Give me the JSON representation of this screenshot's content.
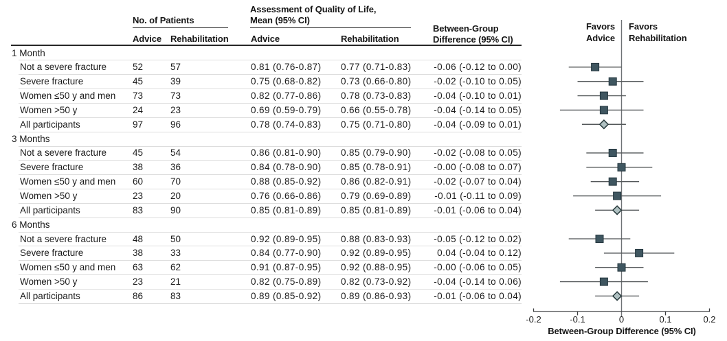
{
  "figure_kind": "forest-plot-with-subgroup-table",
  "table": {
    "column_group_headers": {
      "patients": "No. of Patients",
      "qol_line1": "Assessment of Quality of Life,",
      "qol_line2": "Mean (95% CI)",
      "diff_line1": "Between-Group",
      "diff_line2": "Difference (95% CI)"
    },
    "sub_headers": {
      "patients_advice": "Advice",
      "patients_rehabilitation": "Rehabilitation",
      "qol_advice": "Advice",
      "qol_rehabilitation": "Rehabilitation"
    }
  },
  "plot": {
    "favors_left_line1": "Favors",
    "favors_left_line2": "Advice",
    "favors_right_line1": "Favors",
    "favors_right_line2": "Rehabilitation",
    "xlabel": "Between-Group Difference (95% CI)"
  },
  "colors": {
    "text": "#1b1b1b",
    "heavy_rule": "#262626",
    "row_separator": "#dddddd",
    "zero_line": "#6e7275",
    "ci_line": "#54585a",
    "axis_line": "#3c3e40",
    "square_fill": "#3f5660",
    "square_stroke": "#22343c",
    "diamond_fill": "#b0c1c2",
    "diamond_stroke": "#27393b"
  },
  "chart_data": {
    "type": "forest",
    "xlabel": "Between-Group Difference (95% CI)",
    "xlim": [
      -0.2,
      0.2
    ],
    "xticks": [
      -0.2,
      -0.1,
      0,
      0.1,
      0.2
    ],
    "xtick_labels": [
      "-0.2",
      "-0.1",
      "0",
      "0.1",
      "0.2"
    ],
    "zero_line": 0,
    "legend_left": "Favors Advice",
    "legend_right": "Favors Rehabilitation",
    "sections": [
      {
        "label": "1 Month",
        "rows": [
          {
            "label": "Not a severe fracture",
            "n_advice": "52",
            "n_rehab": "57",
            "qol_advice": "0.81 (0.76-0.87)",
            "qol_rehab": "0.77 (0.71-0.83)",
            "diff": "-0.06 (-0.12 to 0.00)",
            "mean": -0.06,
            "lo": -0.12,
            "hi": 0.0,
            "marker": "square"
          },
          {
            "label": "Severe fracture",
            "n_advice": "45",
            "n_rehab": "39",
            "qol_advice": "0.75 (0.68-0.82)",
            "qol_rehab": "0.73 (0.66-0.80)",
            "diff": "-0.02 (-0.10 to 0.05)",
            "mean": -0.02,
            "lo": -0.1,
            "hi": 0.05,
            "marker": "square"
          },
          {
            "label": "Women ≤50 y and men",
            "n_advice": "73",
            "n_rehab": "73",
            "qol_advice": "0.82 (0.77-0.86)",
            "qol_rehab": "0.78 (0.73-0.83)",
            "diff": "-0.04 (-0.10 to 0.01)",
            "mean": -0.04,
            "lo": -0.1,
            "hi": 0.01,
            "marker": "square"
          },
          {
            "label": "Women >50 y",
            "n_advice": "24",
            "n_rehab": "23",
            "qol_advice": "0.69 (0.59-0.79)",
            "qol_rehab": "0.66 (0.55-0.78)",
            "diff": "-0.04 (-0.14 to 0.05)",
            "mean": -0.04,
            "lo": -0.14,
            "hi": 0.05,
            "marker": "square"
          },
          {
            "label": "All participants",
            "n_advice": "97",
            "n_rehab": "96",
            "qol_advice": "0.78 (0.74-0.83)",
            "qol_rehab": "0.75 (0.71-0.80)",
            "diff": "-0.04 (-0.09 to 0.01)",
            "mean": -0.04,
            "lo": -0.09,
            "hi": 0.01,
            "marker": "diamond"
          }
        ]
      },
      {
        "label": "3 Months",
        "rows": [
          {
            "label": "Not a severe fracture",
            "n_advice": "45",
            "n_rehab": "54",
            "qol_advice": "0.86 (0.81-0.90)",
            "qol_rehab": "0.85 (0.79-0.90)",
            "diff": "-0.02 (-0.08 to 0.05)",
            "mean": -0.02,
            "lo": -0.08,
            "hi": 0.05,
            "marker": "square"
          },
          {
            "label": "Severe fracture",
            "n_advice": "38",
            "n_rehab": "36",
            "qol_advice": "0.84 (0.78-0.90)",
            "qol_rehab": "0.85 (0.78-0.91)",
            "diff": "-0.00 (-0.08 to 0.07)",
            "mean": -0.0,
            "lo": -0.08,
            "hi": 0.07,
            "marker": "square"
          },
          {
            "label": "Women ≤50 y and men",
            "n_advice": "60",
            "n_rehab": "70",
            "qol_advice": "0.88 (0.85-0.92)",
            "qol_rehab": "0.86 (0.82-0.91)",
            "diff": "-0.02 (-0.07 to 0.04)",
            "mean": -0.02,
            "lo": -0.07,
            "hi": 0.04,
            "marker": "square"
          },
          {
            "label": "Women >50 y",
            "n_advice": "23",
            "n_rehab": "20",
            "qol_advice": "0.76 (0.66-0.86)",
            "qol_rehab": "0.79 (0.69-0.89)",
            "diff": "-0.01 (-0.11 to 0.09)",
            "mean": -0.01,
            "lo": -0.11,
            "hi": 0.09,
            "marker": "square"
          },
          {
            "label": "All participants",
            "n_advice": "83",
            "n_rehab": "90",
            "qol_advice": "0.85 (0.81-0.89)",
            "qol_rehab": "0.85 (0.81-0.89)",
            "diff": "-0.01 (-0.06 to 0.04)",
            "mean": -0.01,
            "lo": -0.06,
            "hi": 0.04,
            "marker": "diamond"
          }
        ]
      },
      {
        "label": "6 Months",
        "rows": [
          {
            "label": "Not a severe fracture",
            "n_advice": "48",
            "n_rehab": "50",
            "qol_advice": "0.92 (0.89-0.95)",
            "qol_rehab": "0.88 (0.83-0.93)",
            "diff": "-0.05 (-0.12 to 0.02)",
            "mean": -0.05,
            "lo": -0.12,
            "hi": 0.02,
            "marker": "square"
          },
          {
            "label": "Severe fracture",
            "n_advice": "38",
            "n_rehab": "33",
            "qol_advice": "0.84 (0.77-0.90)",
            "qol_rehab": "0.92 (0.89-0.95)",
            "diff": "0.04 (-0.04 to 0.12)",
            "mean": 0.04,
            "lo": -0.04,
            "hi": 0.12,
            "marker": "square"
          },
          {
            "label": "Women ≤50 y and men",
            "n_advice": "63",
            "n_rehab": "62",
            "qol_advice": "0.91 (0.87-0.95)",
            "qol_rehab": "0.92 (0.88-0.95)",
            "diff": "-0.00 (-0.06 to 0.05)",
            "mean": -0.0,
            "lo": -0.06,
            "hi": 0.05,
            "marker": "square"
          },
          {
            "label": "Women >50 y",
            "n_advice": "23",
            "n_rehab": "21",
            "qol_advice": "0.82 (0.75-0.89)",
            "qol_rehab": "0.82 (0.73-0.92)",
            "diff": "-0.04 (-0.14 to 0.06)",
            "mean": -0.04,
            "lo": -0.14,
            "hi": 0.06,
            "marker": "square"
          },
          {
            "label": "All participants",
            "n_advice": "86",
            "n_rehab": "83",
            "qol_advice": "0.89 (0.85-0.92)",
            "qol_rehab": "0.89 (0.86-0.93)",
            "diff": "-0.01 (-0.06 to 0.04)",
            "mean": -0.01,
            "lo": -0.06,
            "hi": 0.04,
            "marker": "diamond"
          }
        ]
      }
    ]
  }
}
